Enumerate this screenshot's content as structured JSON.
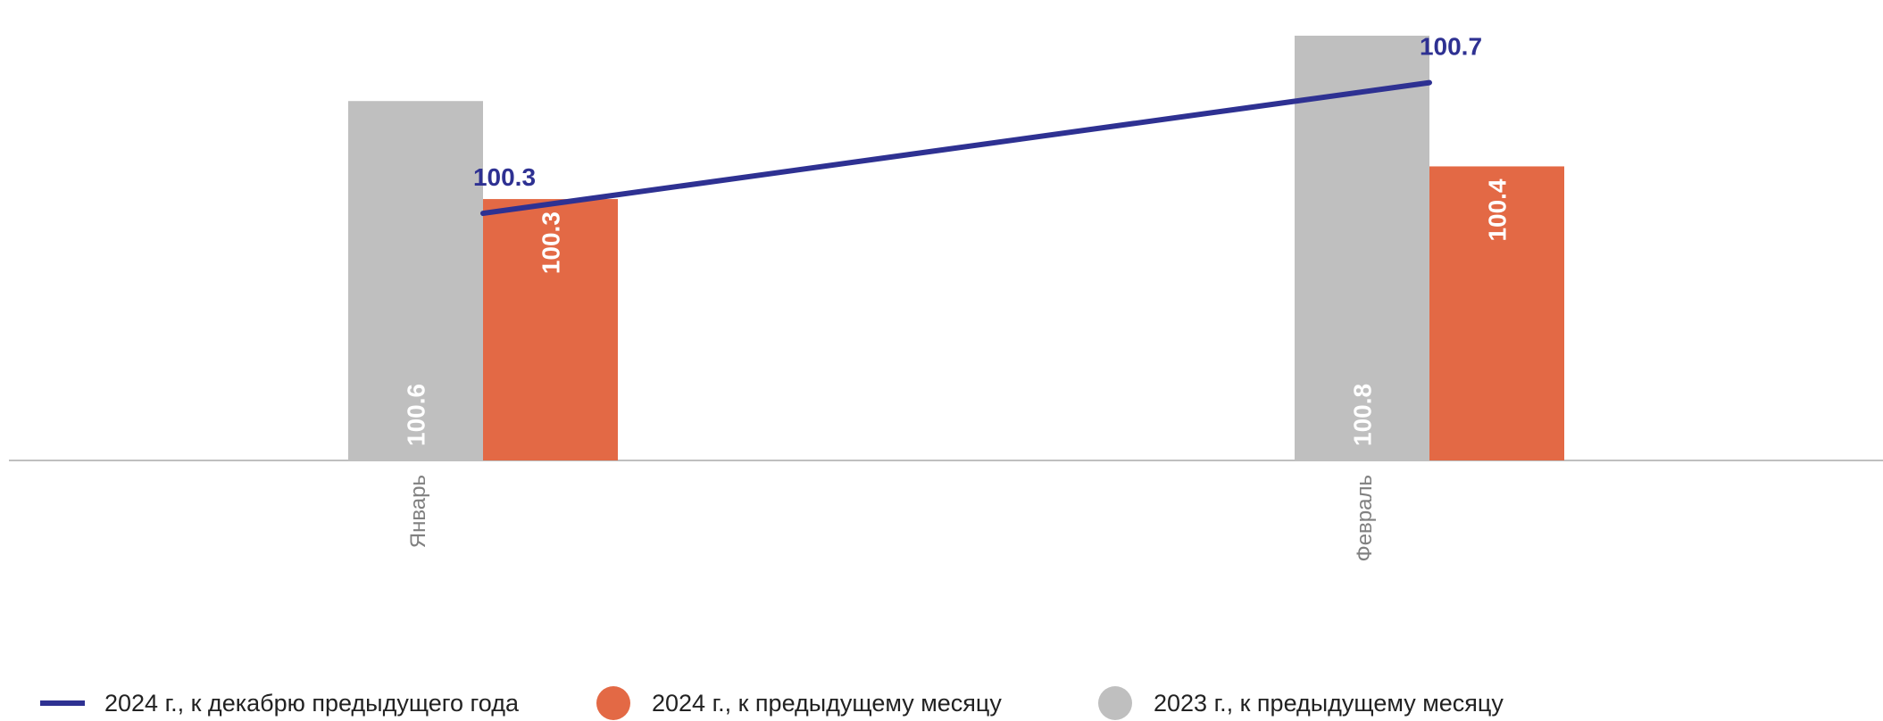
{
  "chart_data": {
    "type": "bar",
    "categories": [
      "Январь",
      "Февраль"
    ],
    "series": [
      {
        "name": "2023 г., к предыдущему месяцу",
        "kind": "bar",
        "color": "#bfbfbf",
        "values": [
          100.6,
          100.8
        ]
      },
      {
        "name": "2024 г., к предыдущему месяцу",
        "kind": "bar",
        "color": "#e36945",
        "values": [
          100.3,
          100.4
        ]
      },
      {
        "name": "2024 г., к декабрю предыдущего года",
        "kind": "line",
        "color": "#2e3192",
        "values": [
          100.3,
          100.7
        ]
      }
    ],
    "legend": [
      {
        "label": "2024 г., к декабрю предыдущего года",
        "marker": "line",
        "color": "#2e3192"
      },
      {
        "label": "2024 г., к предыдущему месяцу",
        "marker": "circle",
        "color": "#e36945"
      },
      {
        "label": "2023 г., к предыдущему месяцу",
        "marker": "circle",
        "color": "#bfbfbf"
      }
    ],
    "legend_position": "bottom",
    "ylim": [
      99.5,
      100.8
    ],
    "grid": false
  }
}
